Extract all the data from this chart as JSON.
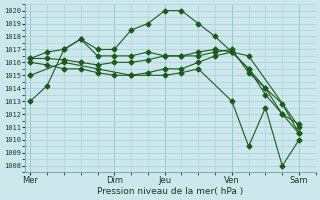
{
  "background_color": "#cce8ec",
  "grid_color": "#a8cdd4",
  "line_color": "#1a5c1a",
  "marker": "D",
  "marker_size": 2.5,
  "ylabel_ticks": [
    1008,
    1009,
    1010,
    1011,
    1012,
    1013,
    1014,
    1015,
    1016,
    1017,
    1018,
    1019,
    1020
  ],
  "ylim": [
    1007.5,
    1020.5
  ],
  "xlabel": "Pression niveau de la mer( hPa )",
  "xtick_labels": [
    "Mer",
    "Dim",
    "Jeu",
    "Ven",
    "Sam"
  ],
  "xtick_positions": [
    0,
    5,
    8,
    12,
    16
  ],
  "vline_positions": [
    0,
    5,
    8,
    12,
    16
  ],
  "xlim": [
    -0.3,
    17
  ],
  "series": [
    {
      "x": [
        0,
        1,
        2,
        3,
        4,
        5,
        6,
        7,
        8,
        9,
        10,
        11,
        12,
        13,
        16
      ],
      "y": [
        1013.0,
        1014.2,
        1017.0,
        1017.8,
        1017.0,
        1017.0,
        1018.5,
        1019.0,
        1020.0,
        1020.0,
        1019.0,
        1018.0,
        1016.8,
        1016.5,
        1011.0
      ]
    },
    {
      "x": [
        0,
        1,
        2,
        3,
        4,
        5,
        6,
        7,
        8,
        9,
        10,
        11,
        12,
        13,
        14,
        15,
        16
      ],
      "y": [
        1016.3,
        1016.8,
        1017.0,
        1017.8,
        1016.5,
        1016.5,
        1016.5,
        1016.8,
        1016.5,
        1016.5,
        1016.5,
        1016.8,
        1017.0,
        1015.2,
        1014.0,
        1012.8,
        1010.5
      ]
    },
    {
      "x": [
        0,
        1,
        2,
        3,
        4,
        5,
        6,
        7,
        8,
        9,
        10,
        11,
        12,
        13,
        14,
        15,
        16
      ],
      "y": [
        1016.3,
        1016.3,
        1016.2,
        1016.0,
        1015.8,
        1016.0,
        1016.0,
        1016.2,
        1016.5,
        1016.5,
        1016.8,
        1017.0,
        1016.8,
        1015.5,
        1014.0,
        1012.0,
        1011.2
      ]
    },
    {
      "x": [
        0,
        1,
        2,
        3,
        4,
        5,
        6,
        7,
        8,
        9,
        10,
        11,
        12,
        13,
        14,
        15,
        16
      ],
      "y": [
        1016.0,
        1015.8,
        1015.5,
        1015.5,
        1015.2,
        1015.0,
        1015.0,
        1015.2,
        1015.5,
        1015.5,
        1016.0,
        1016.5,
        1016.8,
        1015.5,
        1013.5,
        1012.0,
        1010.5
      ]
    },
    {
      "x": [
        0,
        2,
        4,
        6,
        8,
        9,
        10,
        12,
        13,
        14,
        15,
        16
      ],
      "y": [
        1015.0,
        1016.0,
        1015.5,
        1015.0,
        1015.0,
        1015.2,
        1015.5,
        1013.0,
        1009.5,
        1012.5,
        1008.0,
        1010.0
      ]
    }
  ]
}
